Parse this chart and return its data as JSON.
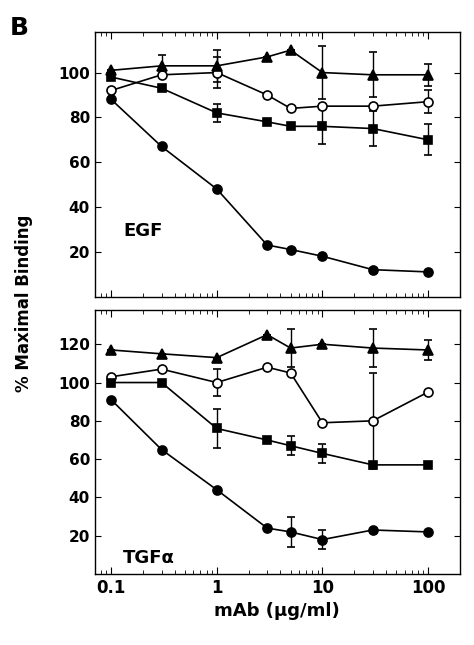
{
  "x_values": [
    0.1,
    0.3,
    1,
    3,
    5,
    10,
    30,
    100
  ],
  "egf": {
    "filled_circle": {
      "y": [
        88,
        67,
        48,
        23,
        21,
        18,
        12,
        11
      ],
      "yerr_low": [
        0,
        0,
        0,
        0,
        0,
        0,
        0,
        0
      ],
      "yerr_high": [
        0,
        0,
        0,
        0,
        0,
        0,
        0,
        0
      ]
    },
    "open_circle": {
      "y": [
        92,
        99,
        100,
        90,
        84,
        85,
        85,
        87
      ],
      "yerr_low": [
        0,
        0,
        7,
        0,
        0,
        0,
        0,
        5
      ],
      "yerr_high": [
        0,
        0,
        7,
        0,
        0,
        0,
        0,
        5
      ]
    },
    "filled_square": {
      "y": [
        98,
        93,
        82,
        78,
        76,
        76,
        75,
        70
      ],
      "yerr_low": [
        0,
        0,
        4,
        0,
        0,
        8,
        8,
        7
      ],
      "yerr_high": [
        0,
        0,
        4,
        0,
        0,
        8,
        8,
        7
      ]
    },
    "filled_triangle": {
      "y": [
        101,
        103,
        103,
        107,
        110,
        100,
        99,
        99
      ],
      "yerr_low": [
        0,
        5,
        7,
        0,
        0,
        12,
        10,
        5
      ],
      "yerr_high": [
        0,
        5,
        7,
        0,
        0,
        12,
        10,
        5
      ]
    }
  },
  "tgfa": {
    "filled_circle": {
      "y": [
        91,
        65,
        44,
        24,
        22,
        18,
        23,
        22
      ],
      "yerr_low": [
        0,
        0,
        0,
        0,
        8,
        5,
        0,
        0
      ],
      "yerr_high": [
        0,
        0,
        0,
        0,
        8,
        5,
        0,
        0
      ]
    },
    "open_circle": {
      "y": [
        103,
        107,
        100,
        108,
        105,
        79,
        80,
        95
      ],
      "yerr_low": [
        0,
        0,
        7,
        0,
        0,
        0,
        25,
        0
      ],
      "yerr_high": [
        0,
        0,
        7,
        0,
        0,
        0,
        25,
        0
      ]
    },
    "filled_square": {
      "y": [
        100,
        100,
        76,
        70,
        67,
        63,
        57,
        57
      ],
      "yerr_low": [
        0,
        0,
        10,
        0,
        5,
        5,
        0,
        0
      ],
      "yerr_high": [
        0,
        0,
        10,
        0,
        5,
        5,
        0,
        0
      ]
    },
    "filled_triangle": {
      "y": [
        117,
        115,
        113,
        125,
        118,
        120,
        118,
        117
      ],
      "yerr_low": [
        0,
        0,
        0,
        0,
        10,
        0,
        10,
        5
      ],
      "yerr_high": [
        0,
        0,
        0,
        0,
        10,
        0,
        10,
        5
      ]
    }
  },
  "ylabel": "% Maximal Binding",
  "xlabel": "mAb (μg/ml)",
  "panel_label": "B",
  "label_egf": "EGF",
  "label_tgfa": "TGFα",
  "egf_yticks": [
    20,
    40,
    60,
    80,
    100
  ],
  "tgfa_yticks": [
    20,
    40,
    60,
    80,
    100,
    120
  ],
  "egf_ylim": [
    0,
    118
  ],
  "tgfa_ylim": [
    0,
    138
  ],
  "xlim": [
    0.07,
    200
  ],
  "xticks": [
    0.1,
    1,
    10,
    100
  ],
  "xticklabels": [
    "0.1",
    "1",
    "10",
    "100"
  ]
}
